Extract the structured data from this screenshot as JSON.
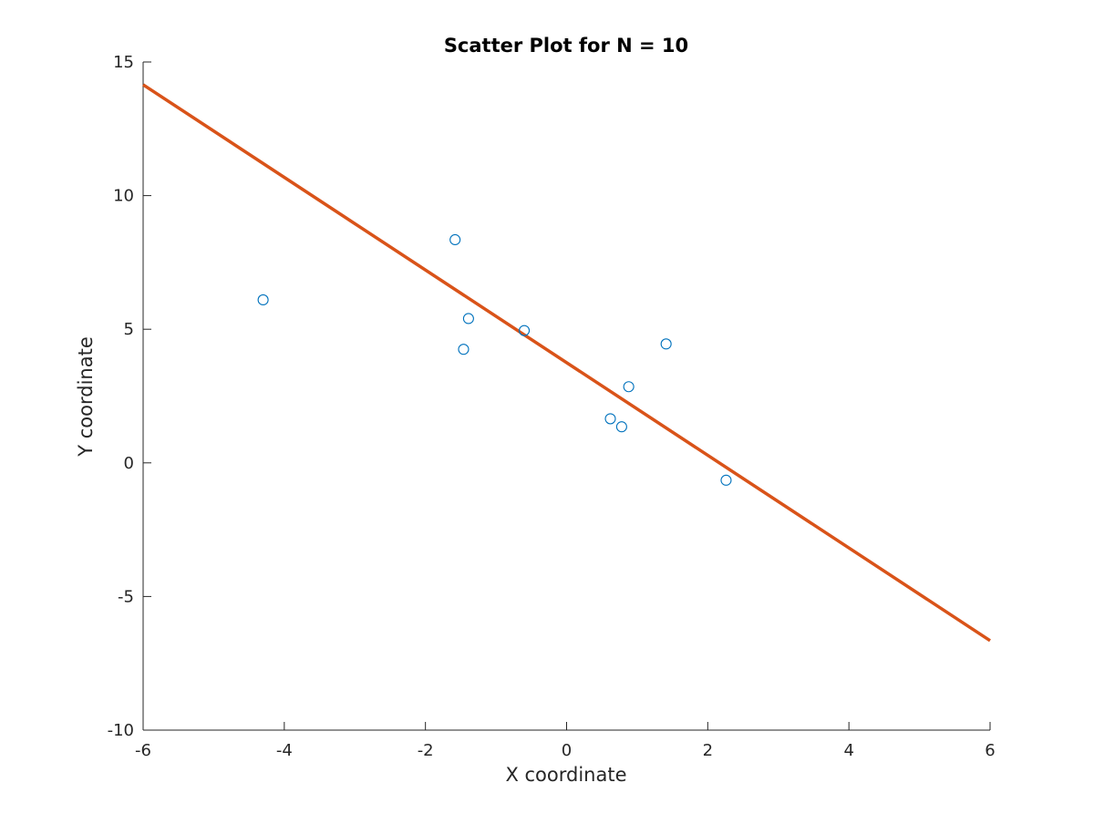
{
  "chart_data": {
    "type": "scatter",
    "title": "Scatter Plot for N = 10",
    "xlabel": "X coordinate",
    "ylabel": "Y coordinate",
    "xlim": [
      -6,
      6
    ],
    "ylim": [
      -10,
      15
    ],
    "xticks": [
      -6,
      -4,
      -2,
      0,
      2,
      4,
      6
    ],
    "yticks": [
      -10,
      -5,
      0,
      5,
      10,
      15
    ],
    "xtick_labels": [
      "-6",
      "-4",
      "-2",
      "0",
      "2",
      "4",
      "6"
    ],
    "ytick_labels": [
      "-10",
      "-5",
      "0",
      "5",
      "10",
      "15"
    ],
    "grid": false,
    "points": {
      "color": "#0072BD",
      "x": [
        -4.3,
        -1.58,
        -1.46,
        -1.39,
        -0.6,
        0.62,
        0.78,
        0.88,
        1.41,
        2.26
      ],
      "y": [
        6.1,
        8.35,
        4.25,
        5.4,
        4.95,
        1.65,
        1.35,
        2.85,
        4.45,
        -0.65
      ]
    },
    "fit_line": {
      "color": "#D95319",
      "x": [
        -6,
        6
      ],
      "y": [
        14.15,
        -6.65
      ]
    }
  }
}
